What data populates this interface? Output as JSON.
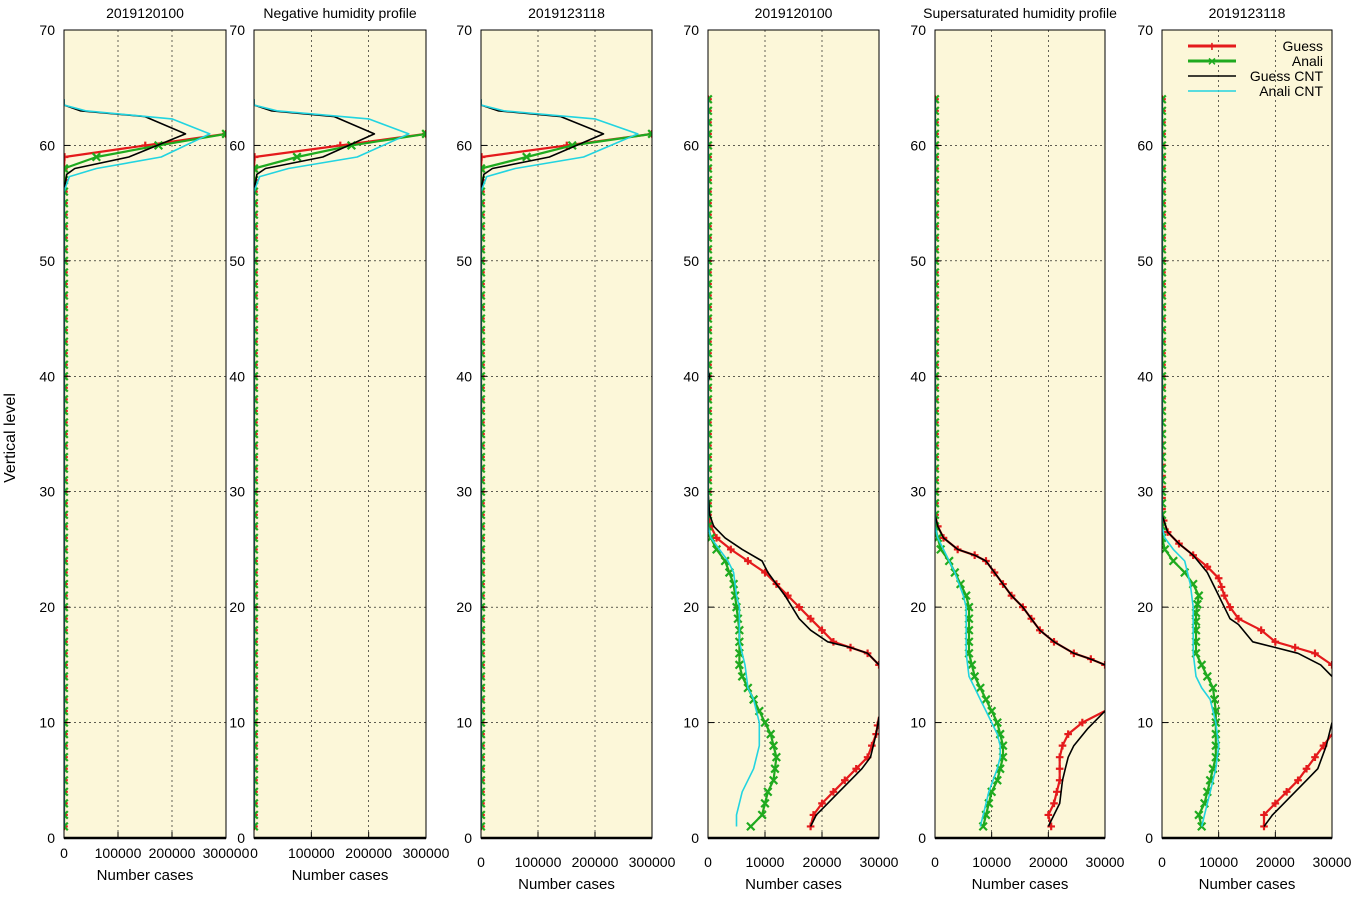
{
  "figure": {
    "ylabel": "Vertical level",
    "legend_position": "top-right of last panel",
    "colors": {
      "background": "#fcf7d9",
      "guess": "#e41a1c",
      "analysis": "#1faa1f",
      "guess_cnt": "#000000",
      "analysis_cnt": "#22d4e0"
    }
  },
  "legend": {
    "guess": "Guess",
    "analysis": "Anali",
    "guess_cnt": "Guess CNT",
    "analysis_cnt": "Anali CNT"
  },
  "chart_data": [
    {
      "type": "line",
      "title": "2019120100",
      "xlabel": "Number cases",
      "xlim": [
        0,
        300000
      ],
      "ylim": [
        0,
        70
      ],
      "x_ticks": [
        0,
        100000,
        200000,
        300000
      ],
      "y_ticks": [
        0,
        10,
        20,
        30,
        40,
        50,
        60,
        70
      ],
      "grid": true,
      "series": [
        {
          "name": "Guess",
          "x": [
            0,
            0,
            0,
            0,
            0,
            0,
            1000,
            300000
          ],
          "y": [
            1,
            20,
            40,
            55,
            57,
            58,
            59,
            61
          ]
        },
        {
          "name": "Anali",
          "x": [
            0,
            0,
            0,
            0,
            0,
            0,
            60000,
            175000,
            300000
          ],
          "y": [
            1,
            20,
            40,
            55,
            57,
            58,
            59,
            60,
            61
          ]
        },
        {
          "name": "Guess CNT",
          "x": [
            0,
            0,
            0,
            5000,
            20000,
            120000,
            225000,
            150000,
            30000,
            0,
            0
          ],
          "y": [
            1,
            30,
            56,
            57.5,
            58,
            59,
            61,
            62.5,
            63,
            63.5,
            64
          ]
        },
        {
          "name": "Anali CNT",
          "x": [
            0,
            0,
            0,
            10000,
            60000,
            180000,
            270000,
            200000,
            40000,
            0,
            0
          ],
          "y": [
            1,
            30,
            56,
            57.3,
            58,
            59,
            61,
            62.3,
            63,
            63.5,
            64
          ]
        }
      ]
    },
    {
      "type": "line",
      "title": "Negative humidity profile",
      "xlabel": "Number cases",
      "xlim": [
        0,
        300000
      ],
      "ylim": [
        0,
        70
      ],
      "x_ticks": [
        0,
        100000,
        200000,
        300000
      ],
      "y_ticks": [
        0,
        10,
        20,
        30,
        40,
        50,
        60,
        70
      ],
      "grid": true,
      "series": [
        {
          "name": "Guess",
          "x": [
            0,
            0,
            0,
            0,
            0,
            0,
            1000,
            300000
          ],
          "y": [
            1,
            20,
            40,
            55,
            57,
            58,
            59,
            61
          ]
        },
        {
          "name": "Anali",
          "x": [
            0,
            0,
            0,
            0,
            0,
            0,
            75000,
            170000,
            300000
          ],
          "y": [
            1,
            20,
            40,
            55,
            57,
            58,
            59,
            60,
            61
          ]
        },
        {
          "name": "Guess CNT",
          "x": [
            0,
            0,
            0,
            5000,
            20000,
            120000,
            210000,
            140000,
            30000,
            0,
            0
          ],
          "y": [
            1,
            30,
            56,
            57.5,
            58,
            59,
            61,
            62.5,
            63,
            63.5,
            64
          ]
        },
        {
          "name": "Anali CNT",
          "x": [
            0,
            0,
            0,
            10000,
            60000,
            180000,
            270000,
            200000,
            40000,
            0,
            0
          ],
          "y": [
            1,
            30,
            56,
            57.3,
            58,
            59,
            61,
            62.3,
            63,
            63.5,
            64
          ]
        }
      ]
    },
    {
      "type": "line",
      "title": "2019123118",
      "xlabel": "Number cases",
      "xlim": [
        0,
        300000
      ],
      "ylim": [
        0,
        70
      ],
      "x_ticks": [
        0,
        100000,
        200000,
        300000
      ],
      "y_ticks": [
        0,
        10,
        20,
        30,
        40,
        50,
        60,
        70
      ],
      "grid": true,
      "series": [
        {
          "name": "Guess",
          "x": [
            0,
            0,
            0,
            0,
            0,
            0,
            1000,
            300000
          ],
          "y": [
            1,
            20,
            40,
            55,
            57,
            58,
            59,
            61
          ]
        },
        {
          "name": "Anali",
          "x": [
            0,
            0,
            0,
            0,
            0,
            0,
            80000,
            160000,
            300000
          ],
          "y": [
            1,
            20,
            40,
            55,
            57,
            58,
            59,
            60,
            61
          ]
        },
        {
          "name": "Guess CNT",
          "x": [
            0,
            0,
            0,
            5000,
            20000,
            120000,
            215000,
            140000,
            30000,
            0,
            0
          ],
          "y": [
            1,
            30,
            56,
            57.5,
            58,
            59,
            61,
            62.5,
            63,
            63.5,
            64
          ]
        },
        {
          "name": "Anali CNT",
          "x": [
            0,
            0,
            0,
            10000,
            60000,
            180000,
            275000,
            200000,
            40000,
            0,
            0
          ],
          "y": [
            1,
            30,
            56,
            57.3,
            58,
            59,
            61,
            62.3,
            63,
            63.5,
            64
          ]
        }
      ]
    },
    {
      "type": "line",
      "title": "2019120100",
      "xlabel": "Number cases",
      "xlim": [
        0,
        30000
      ],
      "ylim": [
        0,
        70
      ],
      "x_ticks": [
        0,
        10000,
        20000,
        30000
      ],
      "y_ticks": [
        0,
        10,
        20,
        30,
        40,
        50,
        60,
        70
      ],
      "grid": true,
      "series": [
        {
          "name": "Guess",
          "x": [
            18000,
            18500,
            20000,
            22000,
            24000,
            26000,
            28000,
            29500,
            30000,
            null,
            30000,
            28000,
            25000,
            22000,
            20000,
            18000,
            16000,
            14000,
            12000,
            10000,
            7000,
            4000,
            1500,
            500,
            0,
            0,
            0,
            0,
            0
          ],
          "y": [
            1,
            2,
            3,
            4,
            5,
            6,
            7,
            9,
            10.5,
            null,
            15,
            16,
            16.5,
            17,
            18,
            19,
            20,
            21,
            22,
            23,
            24,
            25,
            26,
            27,
            28,
            30,
            40,
            50,
            64
          ]
        },
        {
          "name": "Anali",
          "x": [
            7500,
            9500,
            10500,
            11500,
            12000,
            11500,
            11000,
            10000,
            9000,
            8000,
            7000,
            6000,
            5500,
            5500,
            5500,
            5000,
            4500,
            3000,
            1500,
            500,
            0,
            0,
            0,
            0,
            0
          ],
          "y": [
            1,
            2,
            4,
            5,
            7,
            8,
            9,
            10,
            11,
            12,
            13,
            14,
            15,
            16,
            18,
            20,
            22,
            24,
            25,
            26,
            27,
            30,
            40,
            50,
            64
          ]
        },
        {
          "name": "Guess CNT",
          "x": [
            18000,
            19000,
            21000,
            23000,
            25000,
            27000,
            28500,
            29500,
            30000,
            null,
            30000,
            28000,
            25000,
            21000,
            18000,
            16000,
            13500,
            12000,
            10500,
            9500,
            6000,
            3000,
            1000,
            300,
            0,
            0,
            300,
            0,
            0
          ],
          "y": [
            1,
            2,
            3,
            4,
            5,
            6,
            7,
            9,
            10.5,
            null,
            15,
            16,
            16.5,
            17,
            18,
            19,
            21,
            22,
            23,
            24,
            25,
            26,
            27,
            28,
            30,
            39.5,
            40,
            40.5,
            64
          ]
        },
        {
          "name": "Anali CNT",
          "x": [
            5000,
            5000,
            6000,
            8000,
            9000,
            9000,
            9000,
            8000,
            7000,
            6500,
            6000,
            5500,
            5500,
            5500,
            5000,
            4500,
            3500,
            2000,
            500,
            0,
            0,
            0
          ],
          "y": [
            1,
            2,
            4,
            6,
            8,
            9,
            10,
            12,
            13,
            15,
            16,
            17,
            18,
            20,
            21,
            23,
            24,
            25,
            26,
            27,
            30,
            64
          ]
        }
      ]
    },
    {
      "type": "line",
      "title": "Supersaturated humidity profile",
      "xlabel": "Number cases",
      "xlim": [
        0,
        30000
      ],
      "ylim": [
        0,
        70
      ],
      "x_ticks": [
        0,
        10000,
        20000,
        30000
      ],
      "y_ticks": [
        0,
        10,
        20,
        30,
        40,
        50,
        60,
        70
      ],
      "grid": true,
      "series": [
        {
          "name": "Guess",
          "x": [
            20500,
            20000,
            21000,
            21500,
            22000,
            22000,
            22000,
            22500,
            23500,
            26000,
            30000,
            null,
            30000,
            27500,
            24500,
            21000,
            18500,
            17000,
            15500,
            13500,
            12000,
            10500,
            9000,
            7000,
            4000,
            1500,
            500,
            0,
            0,
            0
          ],
          "y": [
            1,
            2,
            3,
            4,
            5,
            6,
            7,
            8,
            9,
            10,
            11,
            null,
            15,
            15.5,
            16,
            17,
            18,
            19,
            20,
            21,
            22,
            23,
            24,
            24.5,
            25,
            26,
            27,
            28,
            40,
            64
          ]
        },
        {
          "name": "Anali",
          "x": [
            8500,
            9000,
            10000,
            11000,
            12000,
            12000,
            11500,
            11000,
            10000,
            9000,
            8000,
            7000,
            6000,
            6000,
            6000,
            5500,
            4500,
            2500,
            1000,
            500,
            0,
            0,
            0
          ],
          "y": [
            1,
            2,
            4,
            5,
            7,
            8,
            9,
            10,
            11,
            12,
            13,
            14,
            16,
            18,
            20,
            21,
            22,
            24,
            25,
            26,
            27,
            30,
            64
          ]
        },
        {
          "name": "Guess CNT",
          "x": [
            20000,
            21000,
            22000,
            22500,
            23000,
            23500,
            24500,
            27000,
            30000,
            null,
            30000,
            27500,
            24500,
            21000,
            18500,
            17000,
            15500,
            13500,
            12000,
            10500,
            9000,
            7000,
            4000,
            1500,
            500,
            0,
            0
          ],
          "y": [
            1,
            2,
            3,
            5,
            6,
            7,
            8,
            9.5,
            11,
            null,
            15,
            15.5,
            16,
            17,
            18,
            19,
            20,
            21,
            22,
            23,
            24,
            24.5,
            25,
            26,
            27,
            28,
            64
          ]
        },
        {
          "name": "Anali CNT",
          "x": [
            8000,
            8500,
            9500,
            11000,
            11500,
            11500,
            11000,
            10000,
            9000,
            8000,
            7000,
            6000,
            5500,
            5500,
            5500,
            5000,
            3500,
            1500,
            500,
            0,
            0
          ],
          "y": [
            1,
            2,
            4,
            6,
            7,
            8,
            9,
            10,
            11,
            12,
            13,
            14,
            16,
            18,
            20,
            21,
            23,
            25,
            26,
            27,
            64
          ]
        }
      ]
    },
    {
      "type": "line",
      "title": "2019123118",
      "xlabel": "Number cases",
      "xlim": [
        0,
        30000
      ],
      "ylim": [
        0,
        70
      ],
      "x_ticks": [
        0,
        10000,
        20000,
        30000
      ],
      "y_ticks": [
        0,
        10,
        20,
        30,
        40,
        50,
        60,
        70
      ],
      "grid": true,
      "series": [
        {
          "name": "Guess",
          "x": [
            18000,
            18000,
            20000,
            22000,
            24000,
            25500,
            27000,
            28500,
            30000,
            null,
            30000,
            27000,
            23500,
            20000,
            17500,
            13500,
            12000,
            11000,
            10000,
            8000,
            5500,
            3000,
            1000,
            300,
            0,
            0,
            0
          ],
          "y": [
            1,
            2,
            3,
            4,
            5,
            6,
            7,
            8,
            9,
            null,
            15,
            16,
            16.5,
            17,
            18,
            19,
            20,
            21,
            22.5,
            23.5,
            24.5,
            25.5,
            26.5,
            27.5,
            28.5,
            40,
            64
          ]
        },
        {
          "name": "Anali",
          "x": [
            7000,
            6500,
            7500,
            8500,
            9500,
            9500,
            9500,
            9500,
            9000,
            8000,
            7000,
            6000,
            6000,
            6000,
            6500,
            5500,
            4000,
            2000,
            500,
            0,
            0,
            0
          ],
          "y": [
            1,
            2,
            3,
            5,
            7,
            8,
            9,
            11,
            13,
            14,
            15,
            16,
            18,
            19.5,
            21,
            22,
            23,
            24,
            25,
            26,
            27,
            64
          ]
        },
        {
          "name": "Guess CNT",
          "x": [
            18000,
            19500,
            21500,
            23500,
            25500,
            27500,
            29000,
            30000,
            null,
            30000,
            28000,
            24000,
            20000,
            16000,
            13500,
            12000,
            10000,
            8000,
            5500,
            3000,
            1000,
            0,
            0
          ],
          "y": [
            1,
            2,
            3,
            4,
            5,
            6,
            8,
            10,
            null,
            14,
            15,
            16,
            16.5,
            17,
            18.5,
            19,
            21,
            23,
            24.5,
            25.5,
            26.5,
            28,
            64
          ]
        },
        {
          "name": "Anali CNT",
          "x": [
            7000,
            7500,
            8500,
            9500,
            10000,
            9500,
            8500,
            7000,
            6000,
            5500,
            5500,
            5500,
            5000,
            4000,
            2000,
            500,
            0,
            0
          ],
          "y": [
            1,
            2,
            4,
            6,
            8,
            10,
            12,
            13,
            14,
            16,
            17,
            20,
            22,
            24,
            25,
            26,
            27,
            64
          ]
        }
      ]
    }
  ]
}
